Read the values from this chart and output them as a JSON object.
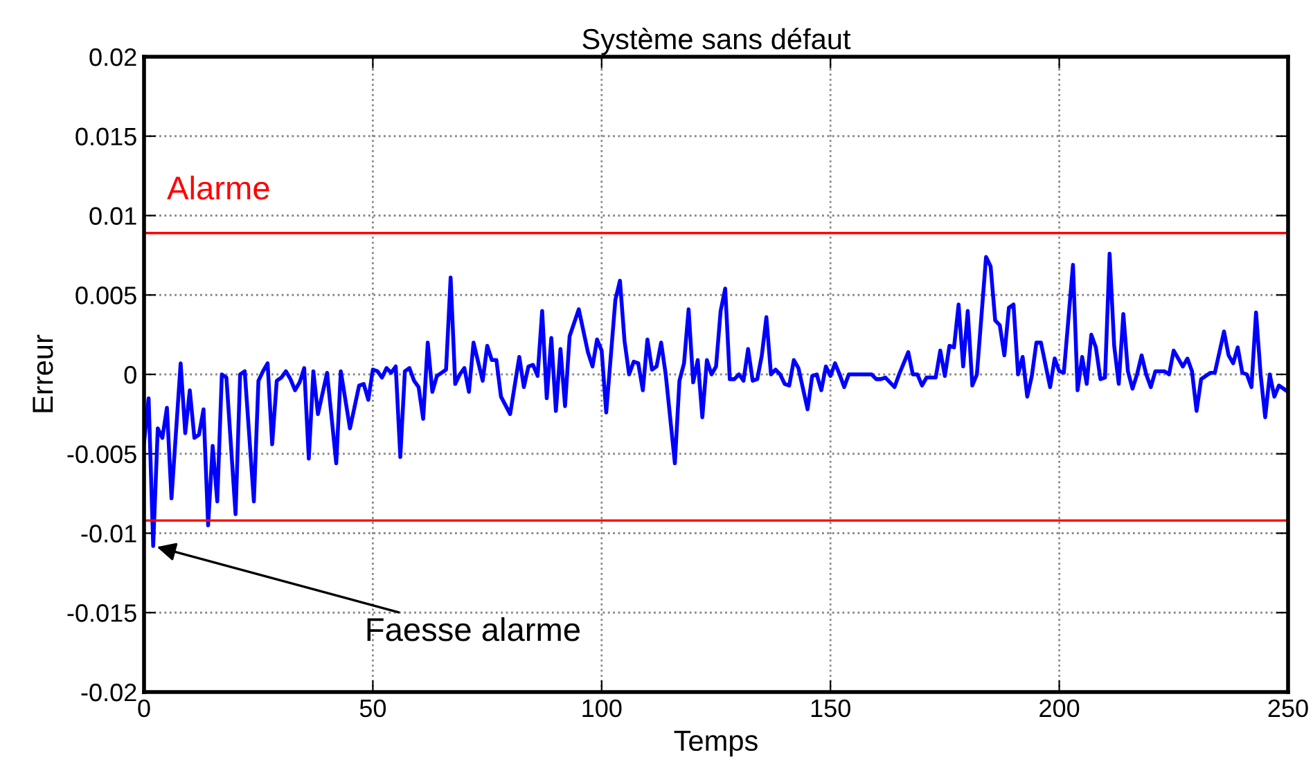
{
  "chart_data": {
    "type": "line",
    "title": "Système sans défaut",
    "xlabel": "Temps",
    "ylabel": "Erreur",
    "xlim": [
      0,
      250
    ],
    "ylim": [
      -0.02,
      0.02
    ],
    "xticks": [
      0,
      50,
      100,
      150,
      200,
      250
    ],
    "yticks": [
      -0.02,
      -0.015,
      -0.01,
      -0.005,
      0,
      0.005,
      0.01,
      0.015,
      0.02
    ],
    "grid": true,
    "series": [
      {
        "color": "#0000ff",
        "x": [
          0,
          1,
          2,
          3,
          4,
          5,
          6,
          8,
          9,
          10,
          11,
          12,
          13,
          14,
          15,
          16,
          17,
          18,
          20,
          21,
          22,
          24,
          25,
          26,
          27,
          28,
          29,
          30,
          31,
          32,
          33,
          34,
          35,
          36,
          37,
          38,
          40,
          42,
          43,
          45,
          47,
          48,
          49,
          50,
          51,
          52,
          53,
          54,
          55,
          56,
          57,
          58,
          59,
          60,
          61,
          62,
          63,
          64,
          65,
          66,
          67,
          68,
          69,
          70,
          71,
          72,
          73,
          74,
          75,
          76,
          77,
          78,
          80,
          82,
          83,
          84,
          85,
          86,
          87,
          88,
          89,
          90,
          91,
          92,
          93,
          95,
          97,
          98,
          99,
          100,
          101,
          103,
          104,
          105,
          106,
          107,
          108,
          109,
          110,
          111,
          112,
          113,
          114,
          116,
          117,
          118,
          119,
          120,
          121,
          122,
          123,
          124,
          125,
          126,
          127,
          128,
          129,
          130,
          131,
          132,
          133,
          134,
          135,
          136,
          137,
          138,
          139,
          140,
          141,
          142,
          143,
          145,
          146,
          147,
          148,
          149,
          150,
          151,
          152,
          153,
          154,
          156,
          159,
          160,
          161,
          162,
          164,
          165,
          167,
          168,
          169,
          170,
          171,
          173,
          174,
          175,
          176,
          177,
          178,
          179,
          180,
          181,
          182,
          184,
          185,
          186,
          187,
          188,
          189,
          190,
          191,
          192,
          193,
          194,
          195,
          196,
          198,
          199,
          200,
          201,
          203,
          204,
          205,
          206,
          207,
          208,
          209,
          210,
          211,
          212,
          213,
          214,
          215,
          216,
          217,
          218,
          219,
          220,
          221,
          223,
          224,
          225,
          226,
          227,
          228,
          229,
          230,
          231,
          233,
          234,
          236,
          237,
          238,
          239,
          240,
          241,
          242,
          243,
          244,
          245,
          246,
          247,
          248,
          249,
          250
        ],
        "values": [
          -0.0043,
          -0.0015,
          -0.0108,
          -0.0034,
          -0.004,
          -0.0021,
          -0.0078,
          0.0007,
          -0.0037,
          -0.001,
          -0.004,
          -0.0038,
          -0.0022,
          -0.0095,
          -0.0045,
          -0.008,
          0.0,
          -0.0002,
          -0.0088,
          0.0,
          0.0002,
          -0.008,
          -0.0004,
          0.0002,
          0.0007,
          -0.0044,
          -0.0004,
          -0.0002,
          0.0002,
          -0.0003,
          -0.001,
          -0.0005,
          0.0004,
          -0.0053,
          0.0002,
          -0.0025,
          0.0001,
          -0.0056,
          0.0002,
          -0.0034,
          -0.0007,
          -0.0006,
          -0.0016,
          0.0003,
          0.0002,
          -0.0002,
          0.0004,
          0.0001,
          0.0005,
          -0.0052,
          0.0002,
          0.0004,
          -0.0004,
          -0.0008,
          -0.0028,
          0.002,
          -0.0011,
          -0.0001,
          0.0001,
          0.0003,
          0.0061,
          -0.0006,
          0.0,
          0.0004,
          -0.0011,
          0.002,
          0.0008,
          -0.0004,
          0.0018,
          0.0009,
          0.0009,
          -0.0014,
          -0.0025,
          0.0011,
          -0.0008,
          0.0005,
          0.0006,
          -0.0001,
          0.004,
          -0.0015,
          0.0023,
          -0.0023,
          0.0016,
          -0.002,
          0.0024,
          0.0041,
          0.0014,
          0.0005,
          0.0022,
          0.0015,
          -0.0024,
          0.0047,
          0.0059,
          0.0021,
          0.0,
          0.0008,
          0.0007,
          -0.001,
          0.0022,
          0.0003,
          0.0005,
          0.002,
          0.0,
          -0.0056,
          -0.0004,
          0.0007,
          0.0041,
          -0.0005,
          0.0009,
          -0.0027,
          0.0009,
          0.0,
          0.0005,
          0.004,
          0.0054,
          -0.0003,
          -0.0003,
          0.0,
          -0.0004,
          0.0016,
          -0.0004,
          -0.0003,
          0.0012,
          0.0036,
          0.0,
          0.0003,
          0.0,
          -0.0006,
          -0.0007,
          0.0009,
          0.0004,
          -0.0022,
          -0.0001,
          0.0,
          -0.001,
          0.0005,
          -0.0001,
          0.0007,
          0.0,
          -0.0008,
          0.0,
          0.0,
          0.0,
          -0.0003,
          -0.0003,
          -0.0002,
          -0.0008,
          0.0,
          0.0014,
          0.0,
          0.0,
          -0.0007,
          -0.0002,
          -0.0002,
          0.0015,
          -0.0001,
          0.0018,
          0.0017,
          0.0044,
          0.0005,
          0.004,
          -0.0007,
          0.0,
          0.0074,
          0.0068,
          0.0034,
          0.0031,
          0.0012,
          0.0042,
          0.0044,
          0.0,
          0.0011,
          -0.0014,
          -0.0001,
          0.002,
          0.002,
          -0.0008,
          0.001,
          0.0002,
          0.0001,
          0.0069,
          -0.001,
          0.0011,
          -0.0006,
          0.0025,
          0.0017,
          -0.0003,
          -0.0002,
          0.0076,
          0.0018,
          -0.0006,
          0.0038,
          0.0002,
          -0.0009,
          0.0,
          0.0012,
          0.0,
          -0.0008,
          0.0002,
          0.0002,
          0.0,
          0.0015,
          0.001,
          0.0005,
          0.001,
          0.0002,
          -0.0023,
          -0.0003,
          0.0001,
          0.0001,
          0.0027,
          0.0012,
          0.0007,
          0.0017,
          0.0001,
          0.0,
          -0.0008,
          0.0039,
          0.0,
          -0.0027,
          0.0,
          -0.0014,
          -0.0007,
          -0.0009,
          -0.0011
        ]
      }
    ],
    "ref_lines": [
      {
        "axis": "y",
        "value": 0.0089,
        "label": "Alarme",
        "color": "#ff0000"
      },
      {
        "axis": "y",
        "value": -0.0092,
        "color": "#ff0000"
      }
    ],
    "annotations": [
      {
        "text": "Faesse alarme",
        "x": 2,
        "y": -0.0108
      }
    ]
  }
}
